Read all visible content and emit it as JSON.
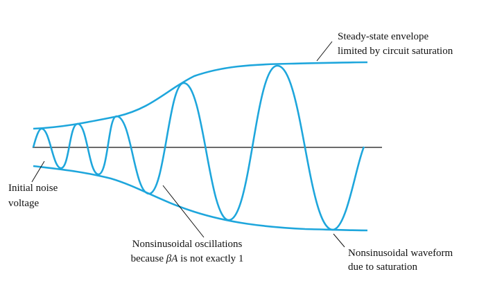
{
  "annotations": {
    "steady_state": {
      "lines": [
        "Steady-state envelope",
        "limited by circuit saturation"
      ]
    },
    "initial_noise": {
      "lines": [
        "Initial noise",
        "voltage"
      ]
    },
    "nonsinusoidal_oscillations": {
      "line1": "Nonsinusoidal oscillations",
      "line2": {
        "before": "because ",
        "symbol": "βA",
        "after": " is not exactly 1"
      }
    },
    "nonsinusoidal_waveform": {
      "lines": [
        "Nonsinusoidal waveform",
        "due to saturation"
      ]
    }
  }
}
